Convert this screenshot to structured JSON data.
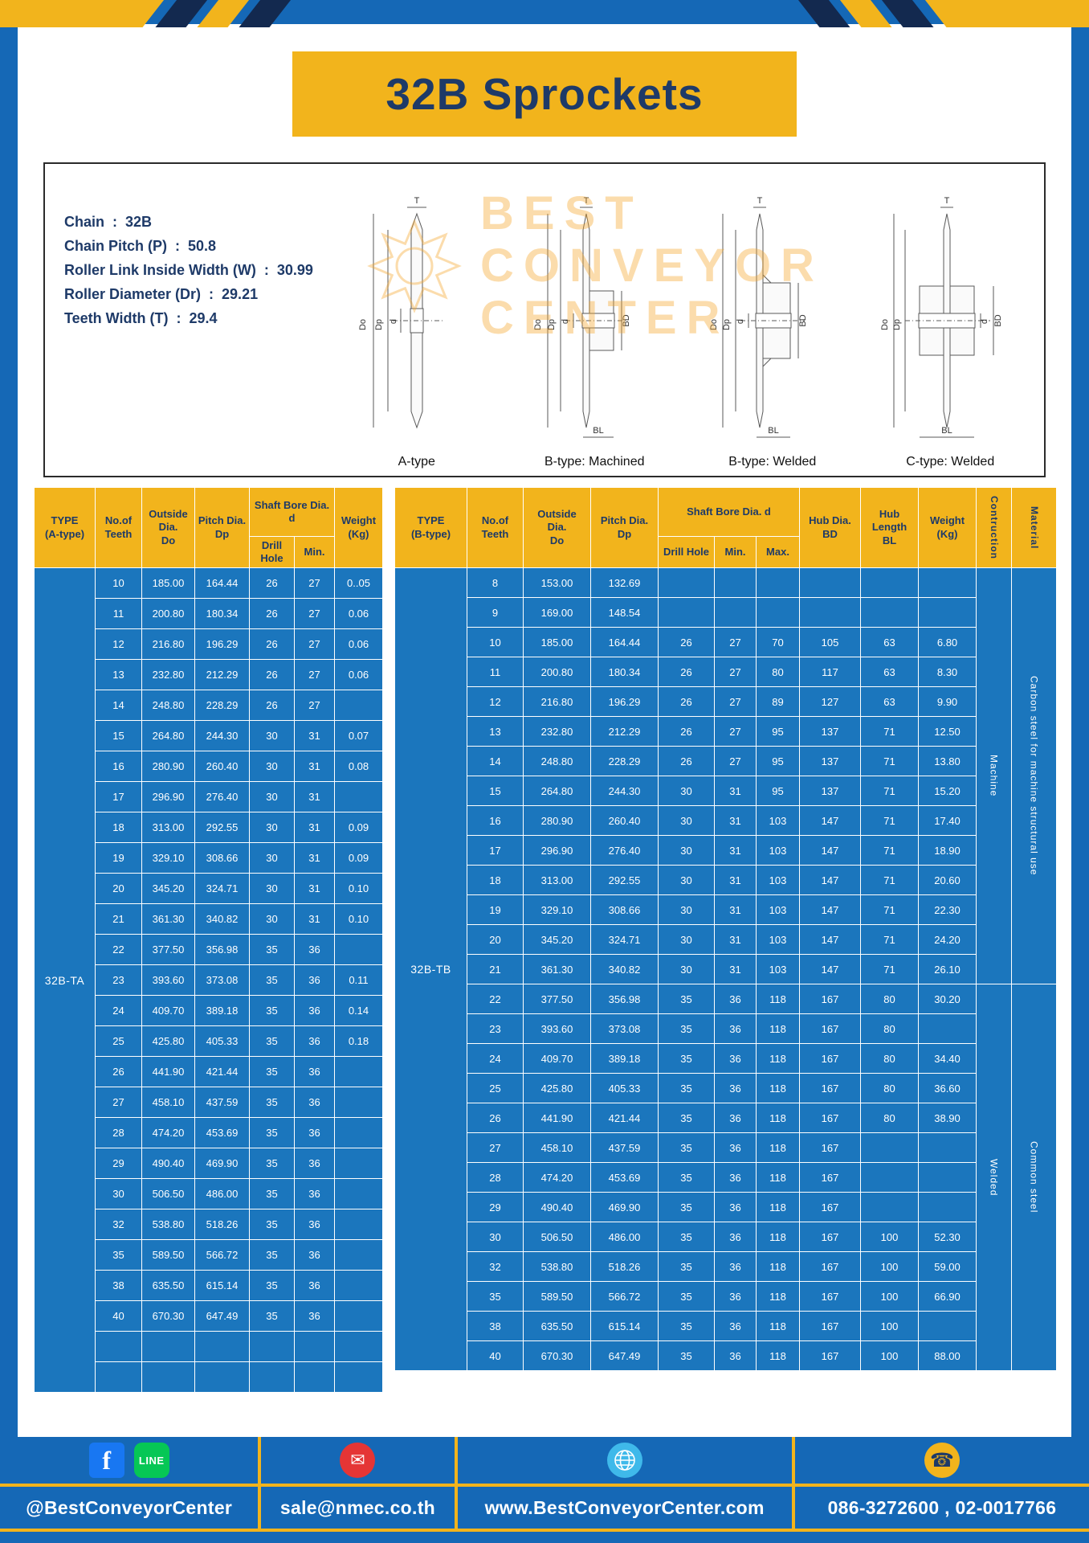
{
  "page": {
    "title": "32B Sprockets"
  },
  "colors": {
    "frame_blue": "#1568B6",
    "table_blue": "#1B76BD",
    "accent_yellow": "#F2B41C",
    "navy_text": "#1E3A68"
  },
  "specs": {
    "lines": [
      "Chain  :  32B",
      "Chain Pitch (P)  :  50.8",
      "Roller Link Inside Width (W)  :  30.99",
      "Roller Diameter (Dr)  :  29.21",
      "Teeth Width (T)  :  29.4"
    ]
  },
  "watermark": {
    "line1": "BEST",
    "line2": "CONVEYOR",
    "line3": "CENTER"
  },
  "drawings": {
    "captions": [
      "A-type",
      "B-type: Machined",
      "B-type: Welded",
      "C-type: Welded"
    ],
    "dims": {
      "t": "T",
      "do": "Do",
      "dp": "Dp",
      "d": "d",
      "bd": "BD",
      "bl": "BL"
    }
  },
  "table_a": {
    "type_label": "32B-TA",
    "headers": {
      "type": "TYPE\n(A-type)",
      "teeth": "No.of\nTeeth",
      "outside": "Outside\nDia.\nDo",
      "pitch": "Pitch Dia.\nDp",
      "shaft": "Shaft Bore Dia. d",
      "drill": "Drill Hole",
      "min": "Min.",
      "weight": "Weight\n(Kg)"
    },
    "rows": [
      [
        "10",
        "185.00",
        "164.44",
        "26",
        "27",
        "0..05"
      ],
      [
        "11",
        "200.80",
        "180.34",
        "26",
        "27",
        "0.06"
      ],
      [
        "12",
        "216.80",
        "196.29",
        "26",
        "27",
        "0.06"
      ],
      [
        "13",
        "232.80",
        "212.29",
        "26",
        "27",
        "0.06"
      ],
      [
        "14",
        "248.80",
        "228.29",
        "26",
        "27",
        ""
      ],
      [
        "15",
        "264.80",
        "244.30",
        "30",
        "31",
        "0.07"
      ],
      [
        "16",
        "280.90",
        "260.40",
        "30",
        "31",
        "0.08"
      ],
      [
        "17",
        "296.90",
        "276.40",
        "30",
        "31",
        ""
      ],
      [
        "18",
        "313.00",
        "292.55",
        "30",
        "31",
        "0.09"
      ],
      [
        "19",
        "329.10",
        "308.66",
        "30",
        "31",
        "0.09"
      ],
      [
        "20",
        "345.20",
        "324.71",
        "30",
        "31",
        "0.10"
      ],
      [
        "21",
        "361.30",
        "340.82",
        "30",
        "31",
        "0.10"
      ],
      [
        "22",
        "377.50",
        "356.98",
        "35",
        "36",
        ""
      ],
      [
        "23",
        "393.60",
        "373.08",
        "35",
        "36",
        "0.11"
      ],
      [
        "24",
        "409.70",
        "389.18",
        "35",
        "36",
        "0.14"
      ],
      [
        "25",
        "425.80",
        "405.33",
        "35",
        "36",
        "0.18"
      ],
      [
        "26",
        "441.90",
        "421.44",
        "35",
        "36",
        ""
      ],
      [
        "27",
        "458.10",
        "437.59",
        "35",
        "36",
        ""
      ],
      [
        "28",
        "474.20",
        "453.69",
        "35",
        "36",
        ""
      ],
      [
        "29",
        "490.40",
        "469.90",
        "35",
        "36",
        ""
      ],
      [
        "30",
        "506.50",
        "486.00",
        "35",
        "36",
        ""
      ],
      [
        "32",
        "538.80",
        "518.26",
        "35",
        "36",
        ""
      ],
      [
        "35",
        "589.50",
        "566.72",
        "35",
        "36",
        ""
      ],
      [
        "38",
        "635.50",
        "615.14",
        "35",
        "36",
        ""
      ],
      [
        "40",
        "670.30",
        "647.49",
        "35",
        "36",
        ""
      ],
      [
        "",
        "",
        "",
        "",
        "",
        ""
      ],
      [
        "",
        "",
        "",
        "",
        "",
        ""
      ]
    ]
  },
  "table_b": {
    "type_label": "32B-TB",
    "headers": {
      "type": "TYPE\n(B-type)",
      "teeth": "No.of\nTeeth",
      "outside": "Outside\nDia.\nDo",
      "pitch": "Pitch Dia.\nDp",
      "shaft": "Shaft Bore Dia. d",
      "drill": "Drill Hole",
      "min": "Min.",
      "max": "Max.",
      "hub_dia": "Hub Dia.\nBD",
      "hub_len": "Hub\nLength\nBL",
      "weight": "Weight\n(Kg)",
      "construction": "Contruction",
      "material": "Material"
    },
    "rows": [
      [
        "8",
        "153.00",
        "132.69",
        "",
        "",
        "",
        "",
        "",
        ""
      ],
      [
        "9",
        "169.00",
        "148.54",
        "",
        "",
        "",
        "",
        "",
        ""
      ],
      [
        "10",
        "185.00",
        "164.44",
        "26",
        "27",
        "70",
        "105",
        "63",
        "6.80"
      ],
      [
        "11",
        "200.80",
        "180.34",
        "26",
        "27",
        "80",
        "117",
        "63",
        "8.30"
      ],
      [
        "12",
        "216.80",
        "196.29",
        "26",
        "27",
        "89",
        "127",
        "63",
        "9.90"
      ],
      [
        "13",
        "232.80",
        "212.29",
        "26",
        "27",
        "95",
        "137",
        "71",
        "12.50"
      ],
      [
        "14",
        "248.80",
        "228.29",
        "26",
        "27",
        "95",
        "137",
        "71",
        "13.80"
      ],
      [
        "15",
        "264.80",
        "244.30",
        "30",
        "31",
        "95",
        "137",
        "71",
        "15.20"
      ],
      [
        "16",
        "280.90",
        "260.40",
        "30",
        "31",
        "103",
        "147",
        "71",
        "17.40"
      ],
      [
        "17",
        "296.90",
        "276.40",
        "30",
        "31",
        "103",
        "147",
        "71",
        "18.90"
      ],
      [
        "18",
        "313.00",
        "292.55",
        "30",
        "31",
        "103",
        "147",
        "71",
        "20.60"
      ],
      [
        "19",
        "329.10",
        "308.66",
        "30",
        "31",
        "103",
        "147",
        "71",
        "22.30"
      ],
      [
        "20",
        "345.20",
        "324.71",
        "30",
        "31",
        "103",
        "147",
        "71",
        "24.20"
      ],
      [
        "21",
        "361.30",
        "340.82",
        "30",
        "31",
        "103",
        "147",
        "71",
        "26.10"
      ],
      [
        "22",
        "377.50",
        "356.98",
        "35",
        "36",
        "118",
        "167",
        "80",
        "30.20"
      ],
      [
        "23",
        "393.60",
        "373.08",
        "35",
        "36",
        "118",
        "167",
        "80",
        ""
      ],
      [
        "24",
        "409.70",
        "389.18",
        "35",
        "36",
        "118",
        "167",
        "80",
        "34.40"
      ],
      [
        "25",
        "425.80",
        "405.33",
        "35",
        "36",
        "118",
        "167",
        "80",
        "36.60"
      ],
      [
        "26",
        "441.90",
        "421.44",
        "35",
        "36",
        "118",
        "167",
        "80",
        "38.90"
      ],
      [
        "27",
        "458.10",
        "437.59",
        "35",
        "36",
        "118",
        "167",
        "",
        ""
      ],
      [
        "28",
        "474.20",
        "453.69",
        "35",
        "36",
        "118",
        "167",
        "",
        ""
      ],
      [
        "29",
        "490.40",
        "469.90",
        "35",
        "36",
        "118",
        "167",
        "",
        ""
      ],
      [
        "30",
        "506.50",
        "486.00",
        "35",
        "36",
        "118",
        "167",
        "100",
        "52.30"
      ],
      [
        "32",
        "538.80",
        "518.26",
        "35",
        "36",
        "118",
        "167",
        "100",
        "59.00"
      ],
      [
        "35",
        "589.50",
        "566.72",
        "35",
        "36",
        "118",
        "167",
        "100",
        "66.90"
      ],
      [
        "38",
        "635.50",
        "615.14",
        "35",
        "36",
        "118",
        "167",
        "100",
        ""
      ],
      [
        "40",
        "670.30",
        "647.49",
        "35",
        "36",
        "118",
        "167",
        "100",
        "88.00"
      ]
    ],
    "construction_groups": [
      {
        "label": "Machine",
        "span": 14
      },
      {
        "label": "Welded",
        "span": 13
      }
    ],
    "material_groups": [
      {
        "label": "Carbon steel for machine structural use",
        "span": 14
      },
      {
        "label": "Common steel",
        "span": 13
      }
    ]
  },
  "footer": {
    "fb_letter": "f",
    "line_text": "LINE",
    "glyphs": {
      "mail": "✉",
      "phone": "☎"
    },
    "sections": [
      {
        "label": "@BestConveyorCenter"
      },
      {
        "label": "sale@nmec.co.th"
      },
      {
        "label": "www.BestConveyorCenter.com"
      },
      {
        "label": "086-3272600 , 02-0017766"
      }
    ]
  }
}
